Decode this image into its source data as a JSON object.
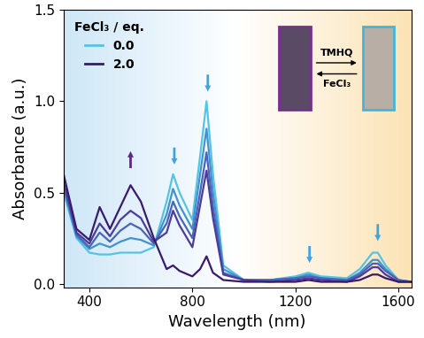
{
  "chart_data": {
    "type": "line",
    "x_label": "Wavelength (nm)",
    "y_label": "Absorbance (a.u.)",
    "legend_title": "FeCl₃ / eq.",
    "legend": "upper left",
    "annotations": [
      "TMHQ",
      "FeCl₃"
    ],
    "x": [
      300,
      350,
      400,
      440,
      480,
      520,
      560,
      600,
      650,
      700,
      725,
      750,
      800,
      830,
      855,
      880,
      920,
      1000,
      1100,
      1200,
      1250,
      1300,
      1400,
      1450,
      1500,
      1520,
      1550,
      1600,
      1650
    ],
    "series": [
      {
        "name": "0.0",
        "color": "#55c3e6",
        "values": [
          0.5,
          0.25,
          0.17,
          0.16,
          0.16,
          0.17,
          0.17,
          0.17,
          0.2,
          0.45,
          0.6,
          0.5,
          0.35,
          0.7,
          1.0,
          0.6,
          0.1,
          0.02,
          0.02,
          0.04,
          0.06,
          0.04,
          0.03,
          0.08,
          0.17,
          0.17,
          0.1,
          0.02,
          0.01
        ]
      },
      {
        "color": "#3f93d0",
        "values": [
          0.52,
          0.26,
          0.19,
          0.22,
          0.2,
          0.23,
          0.25,
          0.24,
          0.21,
          0.38,
          0.52,
          0.43,
          0.3,
          0.6,
          0.85,
          0.5,
          0.08,
          0.02,
          0.02,
          0.03,
          0.05,
          0.03,
          0.02,
          0.06,
          0.13,
          0.13,
          0.08,
          0.02,
          0.01
        ]
      },
      {
        "color": "#4865b8",
        "values": [
          0.54,
          0.27,
          0.2,
          0.28,
          0.23,
          0.29,
          0.33,
          0.3,
          0.22,
          0.33,
          0.45,
          0.37,
          0.25,
          0.5,
          0.72,
          0.42,
          0.06,
          0.02,
          0.02,
          0.03,
          0.04,
          0.03,
          0.02,
          0.05,
          0.11,
          0.11,
          0.07,
          0.02,
          0.01
        ]
      },
      {
        "color": "#4b3c9c",
        "values": [
          0.56,
          0.28,
          0.22,
          0.33,
          0.26,
          0.35,
          0.4,
          0.36,
          0.23,
          0.28,
          0.4,
          0.32,
          0.2,
          0.43,
          0.62,
          0.36,
          0.05,
          0.02,
          0.01,
          0.02,
          0.03,
          0.02,
          0.01,
          0.04,
          0.09,
          0.09,
          0.05,
          0.01,
          0.01
        ]
      },
      {
        "name": "2.0",
        "color": "#3a1a6a",
        "values": [
          0.6,
          0.3,
          0.24,
          0.42,
          0.3,
          0.42,
          0.54,
          0.45,
          0.25,
          0.08,
          0.1,
          0.07,
          0.04,
          0.08,
          0.15,
          0.06,
          0.02,
          0.01,
          0.01,
          0.01,
          0.02,
          0.01,
          0.01,
          0.02,
          0.05,
          0.05,
          0.03,
          0.01,
          0.01
        ]
      }
    ],
    "xlim": [
      300,
      1650
    ],
    "xticks": [
      400,
      800,
      1200,
      1600
    ],
    "ylim": [
      -0.02,
      1.5
    ],
    "yticks": [
      {
        "value": 0,
        "label": "0.0"
      },
      {
        "value": 0.5,
        "label": "0.5"
      },
      {
        "value": 1.0,
        "label": "1.0"
      },
      {
        "value": 1.5,
        "label": "1.5"
      }
    ]
  }
}
